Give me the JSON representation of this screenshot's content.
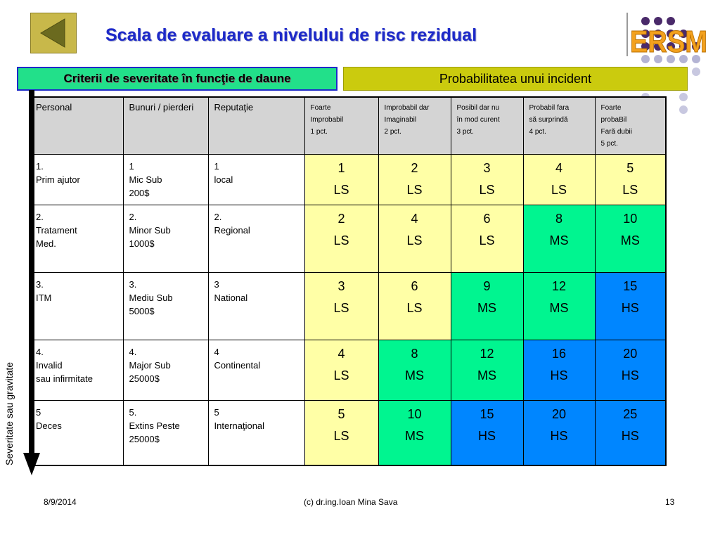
{
  "title": "Scala de evaluare a nivelului de risc rezidual",
  "logo_text": "ERSM",
  "criteria_header": "Criterii de severitate în funcţie de daune",
  "probability_header": "Probabilitatea  unui incident",
  "severity_axis_label": "Severitate  sau gravitate",
  "table": {
    "criteria_columns": [
      "Personal",
      "Bunuri / pierderi",
      "Reputaţie"
    ],
    "probability_columns": [
      [
        "Foarte",
        "Improbabil",
        "1 pct."
      ],
      [
        "Improbabil dar",
        "Imaginabil",
        "2 pct."
      ],
      [
        "Posibil dar nu",
        "în mod curent",
        "3 pct."
      ],
      [
        "Probabil fara",
        "să surprindă",
        "4 pct."
      ],
      [
        "Foarte",
        "probaBil",
        "Fară dubii",
        "5 pct."
      ]
    ],
    "rows": [
      {
        "personal": [
          "1.",
          "Prim ajutor"
        ],
        "bunuri": [
          "1",
          "Mic Sub",
          "200$"
        ],
        "reputatie": [
          "1",
          "local"
        ],
        "cells": [
          {
            "score": "1",
            "level": "LS"
          },
          {
            "score": "2",
            "level": "LS"
          },
          {
            "score": "3",
            "level": "LS"
          },
          {
            "score": "4",
            "level": "LS"
          },
          {
            "score": "5",
            "level": "LS"
          }
        ]
      },
      {
        "personal": [
          "2.",
          "Tratament",
          "Med."
        ],
        "bunuri": [
          "2.",
          "Minor Sub",
          "1000$"
        ],
        "reputatie": [
          "2.",
          "Regional"
        ],
        "cells": [
          {
            "score": "2",
            "level": "LS"
          },
          {
            "score": "4",
            "level": "LS"
          },
          {
            "score": "6",
            "level": "LS"
          },
          {
            "score": "8",
            "level": "MS"
          },
          {
            "score": "10",
            "level": "MS"
          }
        ]
      },
      {
        "personal": [
          "3.",
          "ITM"
        ],
        "bunuri": [
          "3.",
          "Mediu Sub",
          "5000$"
        ],
        "reputatie": [
          "3",
          "National"
        ],
        "cells": [
          {
            "score": "3",
            "level": "LS"
          },
          {
            "score": "6",
            "level": "LS"
          },
          {
            "score": "9",
            "level": "MS"
          },
          {
            "score": "12",
            "level": "MS"
          },
          {
            "score": "15",
            "level": "HS"
          }
        ]
      },
      {
        "personal": [
          "4.",
          "Invalid",
          "sau infirmitate"
        ],
        "bunuri": [
          "4.",
          "Major Sub",
          "25000$"
        ],
        "reputatie": [
          "4",
          "Continental"
        ],
        "cells": [
          {
            "score": "4",
            "level": "LS"
          },
          {
            "score": "8",
            "level": "MS"
          },
          {
            "score": "12",
            "level": "MS"
          },
          {
            "score": "16",
            "level": "HS"
          },
          {
            "score": "20",
            "level": "HS"
          }
        ]
      },
      {
        "personal": [
          "5",
          "Deces"
        ],
        "bunuri": [
          "5.",
          "Extins Peste",
          "25000$"
        ],
        "reputatie": [
          "5",
          "Internaţional"
        ],
        "cells": [
          {
            "score": "5",
            "level": "LS"
          },
          {
            "score": "10",
            "level": "MS"
          },
          {
            "score": "15",
            "level": "HS"
          },
          {
            "score": "20",
            "level": "HS"
          },
          {
            "score": "25",
            "level": "HS"
          }
        ]
      }
    ]
  },
  "level_colors": {
    "LS": "#ffffa6",
    "MS": "#00f590",
    "HS": "#0086ff"
  },
  "colors": {
    "title": "#1d29c9",
    "criteria_band": "#22e08a",
    "probability_band": "#cbcb0e",
    "header_gray": "#d4d4d4",
    "logo_orange": "#f3a11e"
  },
  "footer": {
    "date": "8/9/2014",
    "author": "(c) dr.ing.Ioan Mina Sava",
    "page": "13"
  }
}
